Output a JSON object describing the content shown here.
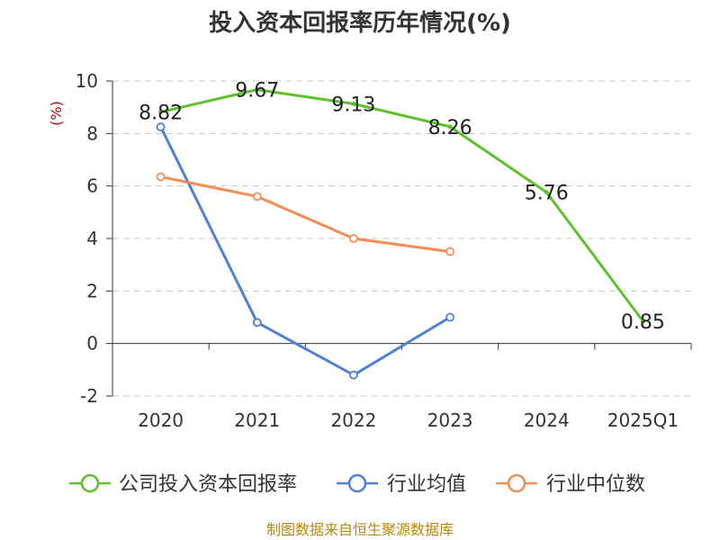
{
  "chart_data": {
    "type": "line",
    "title": "投入资本回报率历年情况(%)",
    "unit_label": "(%)",
    "categories": [
      "2020",
      "2021",
      "2022",
      "2023",
      "2024",
      "2025Q1"
    ],
    "ylim": [
      -2,
      10
    ],
    "yticks": [
      -2,
      0,
      2,
      4,
      6,
      8,
      10
    ],
    "grid": true,
    "legend_position": "bottom",
    "series": [
      {
        "name": "公司投入资本回报率",
        "color": "#5cc12b",
        "values": [
          8.82,
          9.67,
          9.13,
          8.26,
          5.76,
          0.85
        ],
        "labels": [
          "8.82",
          "9.67",
          "9.13",
          "8.26",
          "5.76",
          "0.85"
        ]
      },
      {
        "name": "行业均值",
        "color": "#4f7fd8",
        "values": [
          8.25,
          0.8,
          -1.2,
          1.0,
          null,
          null
        ]
      },
      {
        "name": "行业中位数",
        "color": "#f58b55",
        "values": [
          6.35,
          5.6,
          4.0,
          3.5,
          null,
          null
        ]
      }
    ],
    "source": "制图数据来自恒生聚源数据库"
  }
}
